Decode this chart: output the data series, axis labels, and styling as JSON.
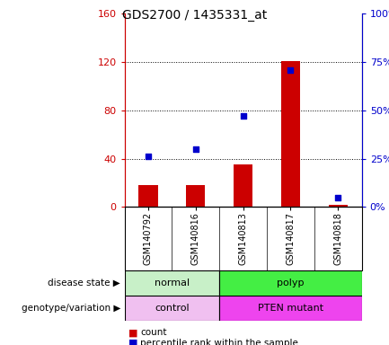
{
  "title": "GDS2700 / 1435331_at",
  "samples": [
    "GSM140792",
    "GSM140816",
    "GSM140813",
    "GSM140817",
    "GSM140818"
  ],
  "counts": [
    18,
    18,
    35,
    121,
    2
  ],
  "percentile_ranks": [
    26,
    30,
    47,
    71,
    5
  ],
  "left_ylim": [
    0,
    160
  ],
  "right_ylim": [
    0,
    100
  ],
  "left_yticks": [
    0,
    40,
    80,
    120,
    160
  ],
  "right_yticks": [
    0,
    25,
    50,
    75,
    100
  ],
  "left_yticklabels": [
    "0",
    "40",
    "80",
    "120",
    "160"
  ],
  "right_yticklabels": [
    "0%",
    "25%",
    "50%",
    "75%",
    "100%"
  ],
  "bar_color": "#cc0000",
  "dot_color": "#0000cc",
  "bar_width": 0.4,
  "disease_state": [
    {
      "label": "normal",
      "samples": [
        0,
        1
      ],
      "color": "#c8f0c8"
    },
    {
      "label": "polyp",
      "samples": [
        2,
        3,
        4
      ],
      "color": "#44ee44"
    }
  ],
  "genotype": [
    {
      "label": "control",
      "samples": [
        0,
        1
      ],
      "color": "#f0c0f0"
    },
    {
      "label": "PTEN mutant",
      "samples": [
        2,
        3,
        4
      ],
      "color": "#ee44ee"
    }
  ],
  "grid_color": "black",
  "bg_color": "white",
  "plot_bg": "white",
  "tick_color_left": "#cc0000",
  "tick_color_right": "#0000cc",
  "label_row1": "disease state",
  "label_row2": "genotype/variation",
  "legend_count": "count",
  "legend_pct": "percentile rank within the sample",
  "sample_label_bg": "#c8c8c8",
  "sample_divider_color": "#888888"
}
